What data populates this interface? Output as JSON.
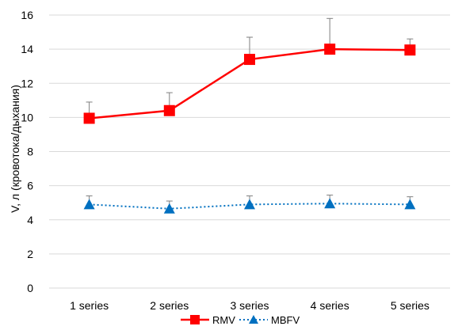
{
  "chart_data": {
    "type": "line",
    "ylabel": "V, л (кровотока/дыхания)",
    "xlabel": "",
    "ylim": [
      0,
      16
    ],
    "yticks": [
      0,
      2,
      4,
      6,
      8,
      10,
      12,
      14,
      16
    ],
    "grid": true,
    "legend": "bottom",
    "categories": [
      "1 series",
      "2 series",
      "3 series",
      "4 series",
      "5 series"
    ],
    "series": [
      {
        "name": "RMV",
        "values": [
          9.95,
          10.4,
          13.4,
          14.0,
          13.95
        ],
        "error_upper": [
          10.9,
          11.45,
          14.7,
          15.8,
          14.6
        ],
        "color": "#ff0000",
        "line_style": "solid",
        "marker": "square"
      },
      {
        "name": "MBFV",
        "values": [
          4.9,
          4.65,
          4.9,
          4.95,
          4.9
        ],
        "error_upper": [
          5.4,
          5.1,
          5.4,
          5.45,
          5.35
        ],
        "color": "#0070c0",
        "line_style": "dotted",
        "marker": "triangle"
      }
    ]
  }
}
